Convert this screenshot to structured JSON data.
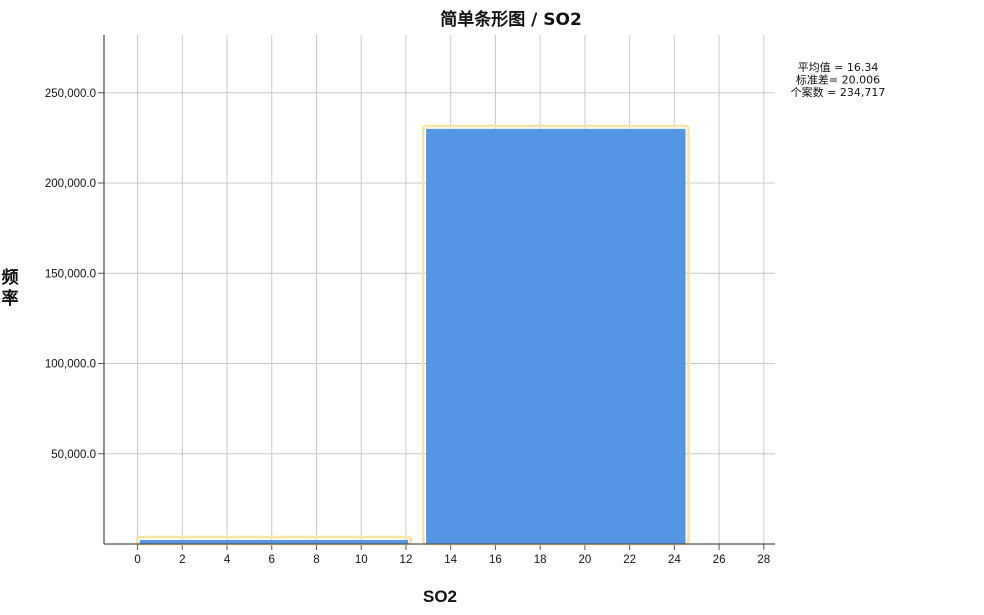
{
  "chart_data": {
    "type": "bar",
    "title": "简单条形图 / SO2",
    "xlabel": "SO2",
    "ylabel": "频率",
    "x_ticks": [
      "0",
      "2",
      "4",
      "6",
      "8",
      "10",
      "12",
      "14",
      "16",
      "18",
      "20",
      "22",
      "24",
      "26",
      "28"
    ],
    "y_ticks": [
      "50,000.0",
      "100,000.0",
      "150,000.0",
      "200,000.0",
      "250,000.0"
    ],
    "xlim": [
      -1.5,
      28.5
    ],
    "ylim": [
      0,
      282000
    ],
    "grid": true,
    "bars": [
      {
        "x0": 0.1,
        "x1": 12.1,
        "value": 1900
      },
      {
        "x0": 12.9,
        "x1": 24.5,
        "value": 230000
      }
    ],
    "stats": [
      "平均值 = 16.34",
      "标准差= 20.006",
      "个案数 = 234,717"
    ],
    "bar_color": "#5496E4",
    "highlight_color": "#F9E3A3",
    "grid_color": "#C8C8C8"
  }
}
